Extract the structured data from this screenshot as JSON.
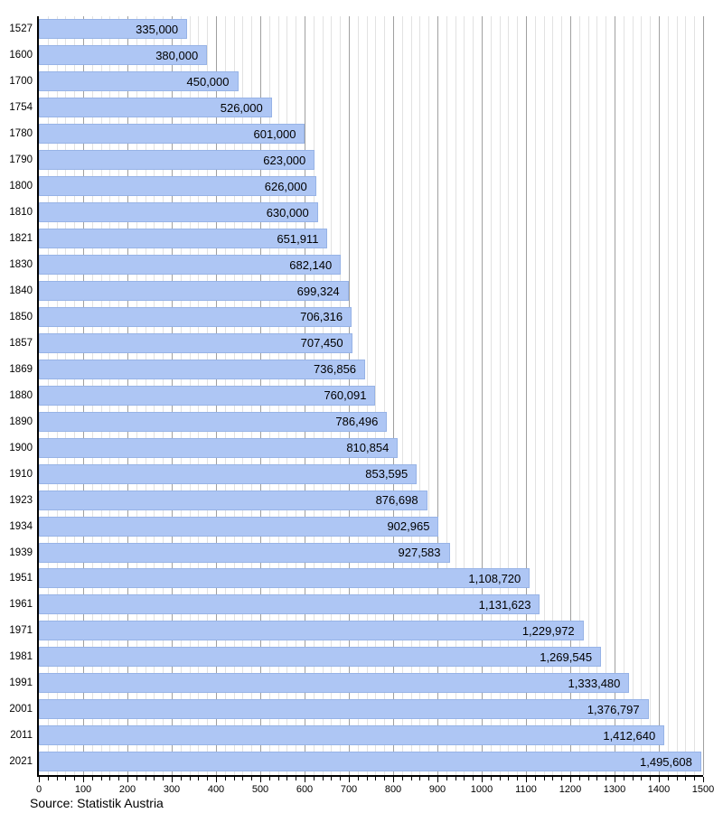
{
  "chart_data": {
    "type": "bar",
    "orientation": "horizontal",
    "title": "",
    "xlabel": "",
    "ylabel": "",
    "xlim": [
      0,
      1500
    ],
    "x_axis_unit": "thousands",
    "x_major_step": 100,
    "x_minor_step": 20,
    "grid": true,
    "legend": "none",
    "categories": [
      "1527",
      "1600",
      "1700",
      "1754",
      "1780",
      "1790",
      "1800",
      "1810",
      "1821",
      "1830",
      "1840",
      "1850",
      "1857",
      "1869",
      "1880",
      "1890",
      "1900",
      "1910",
      "1923",
      "1934",
      "1939",
      "1951",
      "1961",
      "1971",
      "1981",
      "1991",
      "2001",
      "2011",
      "2021"
    ],
    "values": [
      335000,
      380000,
      450000,
      526000,
      601000,
      623000,
      626000,
      630000,
      651911,
      682140,
      699324,
      706316,
      707450,
      736856,
      760091,
      786496,
      810854,
      853595,
      876698,
      902965,
      927583,
      1108720,
      1131623,
      1229972,
      1269545,
      1333480,
      1376797,
      1412640,
      1495608
    ],
    "value_labels": [
      "335,000",
      "380,000",
      "450,000",
      "526,000",
      "601,000",
      "623,000",
      "626,000",
      "630,000",
      "651,911",
      "682,140",
      "699,324",
      "706,316",
      "707,450",
      "736,856",
      "760,091",
      "786,496",
      "810,854",
      "853,595",
      "876,698",
      "902,965",
      "927,583",
      "1,108,720",
      "1,131,623",
      "1,229,972",
      "1,269,545",
      "1,333,480",
      "1,376,797",
      "1,412,640",
      "1,495,608"
    ],
    "x_tick_labels": [
      "0",
      "100",
      "200",
      "300",
      "400",
      "500",
      "600",
      "700",
      "800",
      "900",
      "1000",
      "1100",
      "1200",
      "1300",
      "1400",
      "1500"
    ]
  },
  "source": {
    "label": "Source: Statistik Austria"
  },
  "colors": {
    "background": "#ffffff",
    "bar_fill": "#aec6f4",
    "bar_border": "#97b3e6",
    "grid_minor": "#e2e2e2",
    "grid_major": "#a0a0a0",
    "axis": "#000000",
    "text": "#000000"
  }
}
